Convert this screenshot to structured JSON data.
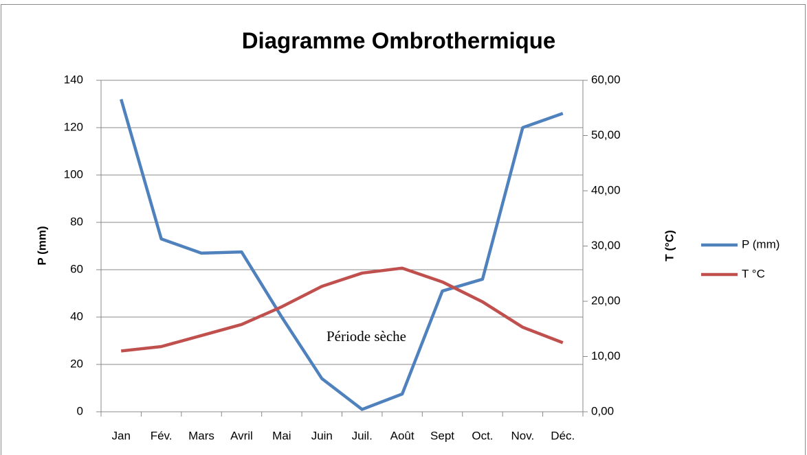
{
  "chart_data": {
    "type": "line",
    "title": "Diagramme Ombrothermique",
    "y_label": "P (mm)",
    "y2_label": "T (°C)",
    "annotation": "Période sèche",
    "categories": [
      "Jan",
      "Fév.",
      "Mars",
      "Avril",
      "Mai",
      "Juin",
      "Juil.",
      "Août",
      "Sept",
      "Oct.",
      "Nov.",
      "Déc."
    ],
    "series": [
      {
        "name": "P (mm)",
        "color": "#4f81bd",
        "values": [
          132,
          73,
          67,
          67.5,
          40,
          14,
          1,
          7.5,
          51,
          56,
          120,
          126
        ]
      },
      {
        "name": "T °C",
        "color": "#c0504d",
        "axis": "y2",
        "values": [
          11.0,
          11.8,
          13.8,
          15.8,
          19.0,
          22.7,
          25.1,
          26.0,
          23.5,
          19.9,
          15.3,
          12.5
        ]
      }
    ],
    "ylim": [
      0,
      140
    ],
    "yticks": [
      0,
      20,
      40,
      60,
      80,
      100,
      120,
      140
    ],
    "y2lim": [
      0,
      60
    ],
    "y2ticks": [
      {
        "value": 0,
        "label": "0,00"
      },
      {
        "value": 10,
        "label": "10,00"
      },
      {
        "value": 20,
        "label": "20,00"
      },
      {
        "value": 30,
        "label": "30,00"
      },
      {
        "value": 40,
        "label": "40,00"
      },
      {
        "value": 50,
        "label": "50,00"
      },
      {
        "value": 60,
        "label": "60,00"
      }
    ],
    "grid": true,
    "legend": "right"
  }
}
